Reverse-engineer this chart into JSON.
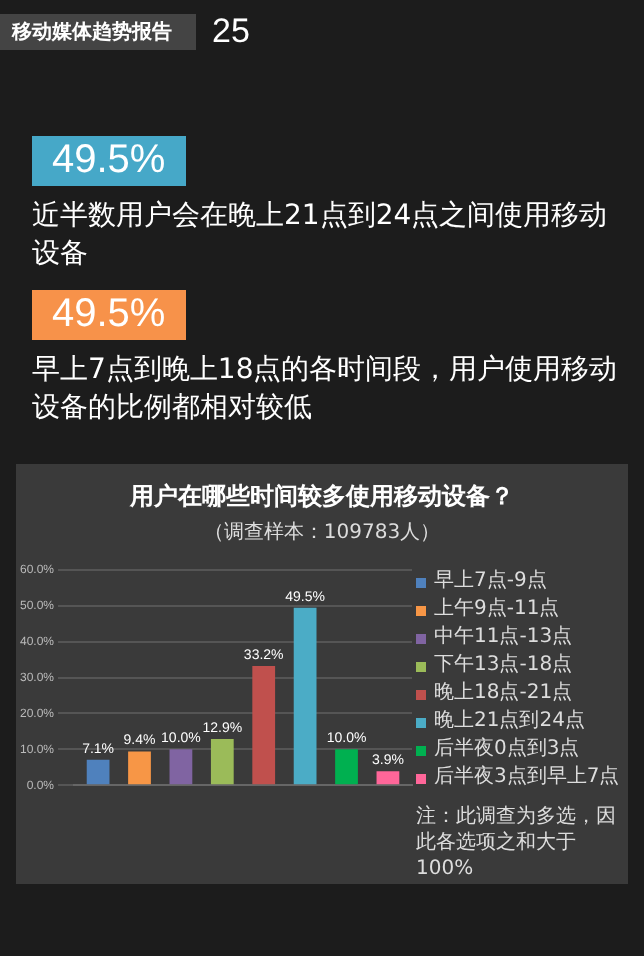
{
  "chart_data": {
    "type": "bar",
    "title": "用户在哪些时间较多使用移动设备？",
    "subtitle": "（调查样本：109783人）",
    "annotations": [
      "移动媒体趋势报告",
      "25",
      "49.5%",
      "近半数用户会在晚上21点到24点之间使用移动设备",
      "49.5%",
      "早上7点到晚上18点的各时间段，用户使用移动设备的比例都相对较低",
      "注：此调查为多选，因此各选项之和大于100%"
    ],
    "categories": [
      null
    ],
    "series": [
      {
        "name": "早上7点-9点",
        "color": "#4f81bd",
        "values": [
          7.1
        ],
        "value_labels": [
          "7.1%"
        ]
      },
      {
        "name": "上午9点-11点",
        "color": "#f79646",
        "values": [
          9.4
        ],
        "value_labels": [
          "9.4%"
        ]
      },
      {
        "name": "中午11点-13点",
        "color": "#8064a2",
        "values": [
          10.0
        ],
        "value_labels": [
          "10.0%"
        ]
      },
      {
        "name": "下午13点-18点",
        "color": "#9bbb59",
        "values": [
          12.9
        ],
        "value_labels": [
          "12.9%"
        ]
      },
      {
        "name": "晚上18点-21点",
        "color": "#c0504d",
        "values": [
          33.2
        ],
        "value_labels": [
          "33.2%"
        ]
      },
      {
        "name": "晚上21点到24点",
        "color": "#4bacc6",
        "values": [
          49.5
        ],
        "value_labels": [
          "49.5%"
        ]
      },
      {
        "name": "后半夜0点到3点",
        "color": "#00b050",
        "values": [
          10.0
        ],
        "value_labels": [
          "10.0%"
        ]
      },
      {
        "name": "后半夜3点到早上7点",
        "color": "#ff6699",
        "values": [
          3.9
        ],
        "value_labels": [
          "3.9%"
        ]
      }
    ],
    "ylim": [
      0,
      60
    ],
    "yticks": [
      {
        "value": 0,
        "label": "0.0%"
      },
      {
        "value": 10,
        "label": "10.0%"
      },
      {
        "value": 20,
        "label": "20.0%"
      },
      {
        "value": 30,
        "label": "30.0%"
      },
      {
        "value": 40,
        "label": "40.0%"
      },
      {
        "value": 50,
        "label": "50.0%"
      },
      {
        "value": 60,
        "label": "60.0%"
      }
    ],
    "grid": "y",
    "legend": "right"
  }
}
